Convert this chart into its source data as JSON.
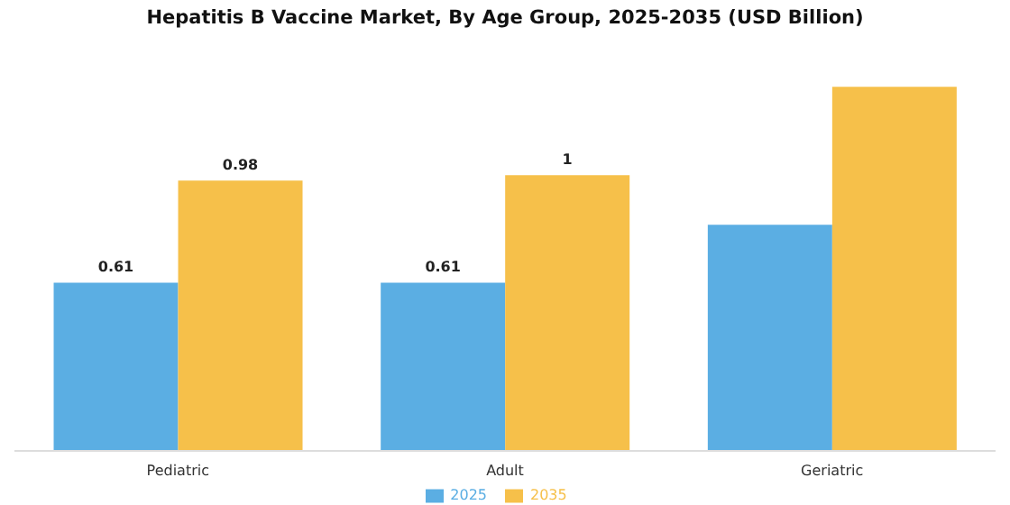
{
  "chart_data": {
    "type": "bar",
    "title": "Hepatitis B Vaccine Market, By Age Group, 2025-2035 (USD Billion)",
    "categories": [
      "Pediatric",
      "Adult",
      "Geriatric"
    ],
    "series": [
      {
        "name": "2025",
        "color": "#5baee3",
        "values": [
          0.61,
          0.61,
          0.82
        ],
        "value_labels": [
          "0.61",
          "0.61",
          null
        ]
      },
      {
        "name": "2035",
        "color": "#f6c04a",
        "values": [
          0.98,
          1,
          1.32
        ],
        "value_labels": [
          "0.98",
          "1",
          null
        ]
      }
    ],
    "legend": "bottom",
    "grid": false
  }
}
